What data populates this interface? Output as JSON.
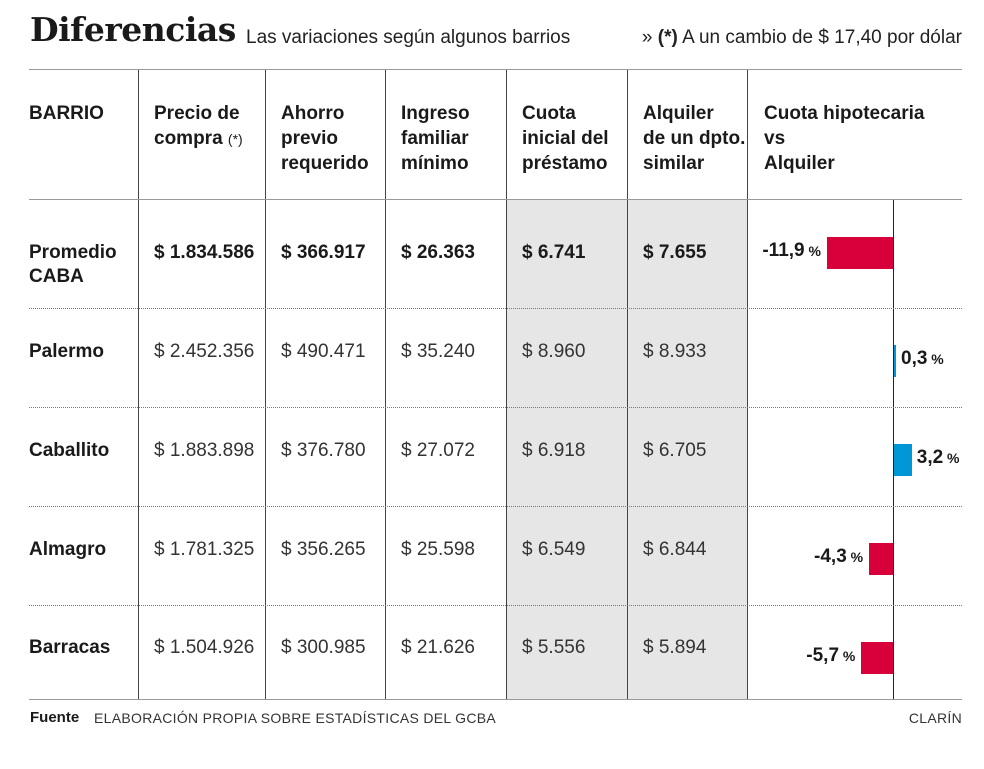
{
  "header": {
    "title": "Diferencias",
    "dot": "·",
    "subtitle": "Las variaciones según algunos barrios",
    "note_prefix": "»",
    "note_mark": "(*)",
    "note_text": "A un cambio de $ 17,40 por dólar"
  },
  "columns": {
    "barrio": "BARRIO",
    "precio": "Precio de\ncompra",
    "precio_asterisk": "(*)",
    "ahorro": "Ahorro\nprevio\nrequerido",
    "ingreso": "Ingreso\nfamiliar\nmínimo",
    "cuota": "Cuota\ninicial del\npréstamo",
    "alquiler": "Alquiler\nde un dpto.\nsimilar",
    "comparacion": "Cuota hipotecaria\nvs\nAlquiler"
  },
  "rows": [
    {
      "barrio": "Promedio\nCABA",
      "precio": "$ 1.834.586",
      "ahorro": "$ 366.917",
      "ingreso": "$ 26.363",
      "cuota": "$ 6.741",
      "alquiler": "$ 7.655",
      "diff_label": "-11,9",
      "pct_sign": "%"
    },
    {
      "barrio": "Palermo",
      "precio": "$ 2.452.356",
      "ahorro": "$ 490.471",
      "ingreso": "$ 35.240",
      "cuota": "$ 8.960",
      "alquiler": "$ 8.933",
      "diff_label": "0,3",
      "pct_sign": "%"
    },
    {
      "barrio": "Caballito",
      "precio": "$ 1.883.898",
      "ahorro": "$ 376.780",
      "ingreso": "$ 27.072",
      "cuota": "$ 6.918",
      "alquiler": "$ 6.705",
      "diff_label": "3,2",
      "pct_sign": "%"
    },
    {
      "barrio": "Almagro",
      "precio": "$ 1.781.325",
      "ahorro": "$ 356.265",
      "ingreso": "$ 25.598",
      "cuota": "$ 6.549",
      "alquiler": "$ 6.844",
      "diff_label": "-4,3",
      "pct_sign": "%"
    },
    {
      "barrio": "Barracas",
      "precio": "$ 1.504.926",
      "ahorro": "$ 300.985",
      "ingreso": "$ 21.626",
      "cuota": "$ 5.556",
      "alquiler": "$ 5.894",
      "diff_label": "-5,7",
      "pct_sign": "%"
    }
  ],
  "footer": {
    "label": "Fuente",
    "source": "ELABORACIÓN PROPIA SOBRE ESTADÍSTICAS DEL GCBA",
    "brand": "CLARÍN"
  },
  "colors": {
    "negative": "#d8003a",
    "positive": "#0097d6",
    "shade": "#e6e6e6"
  },
  "chart_data": {
    "type": "bar",
    "orientation": "horizontal",
    "categories": [
      "Promedio CABA",
      "Palermo",
      "Caballito",
      "Almagro",
      "Barracas"
    ],
    "series": [
      {
        "values": [
          -11.9,
          0.3,
          3.2,
          -4.3,
          -5.7
        ]
      }
    ],
    "unit": "%",
    "grid": false,
    "legend": "none"
  }
}
